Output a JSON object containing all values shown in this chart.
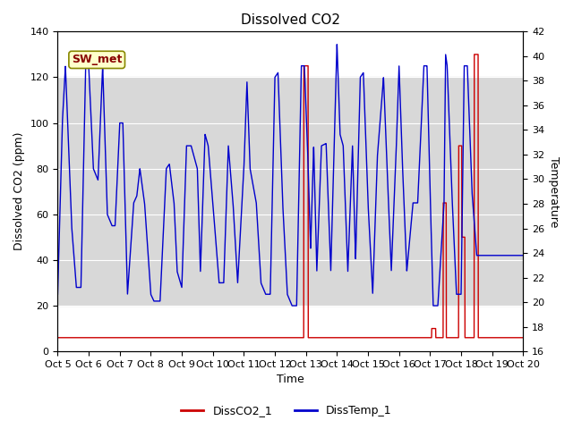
{
  "title": "Dissolved CO2",
  "ylabel_left": "Dissolved CO2 (ppm)",
  "ylabel_right": "Temperature",
  "xlabel": "Time",
  "ylim_left": [
    0,
    140
  ],
  "ylim_right": [
    16,
    42
  ],
  "xlim": [
    0,
    15
  ],
  "xtick_labels": [
    "Oct 5",
    "Oct 6",
    "Oct 7",
    "Oct 8",
    "Oct 9",
    "Oct 10",
    "Oct 11",
    "Oct 12",
    "Oct 13",
    "Oct 14",
    "Oct 15",
    "Oct 16",
    "Oct 17",
    "Oct 18",
    "Oct 19",
    "Oct 20"
  ],
  "xtick_positions": [
    0,
    1,
    2,
    3,
    4,
    5,
    6,
    7,
    8,
    9,
    10,
    11,
    12,
    13,
    14,
    15
  ],
  "shaded_region": [
    20,
    120
  ],
  "sw_met_label": "SW_met",
  "legend_labels": [
    "DissCO2_1",
    "DissTemp_1"
  ],
  "legend_colors": [
    "#cc0000",
    "#0000cc"
  ],
  "background_color": "#ffffff",
  "grid_color": "#ffffff",
  "shade_color": "#d8d8d8",
  "title_fontsize": 11,
  "axis_fontsize": 9,
  "tick_fontsize": 8
}
